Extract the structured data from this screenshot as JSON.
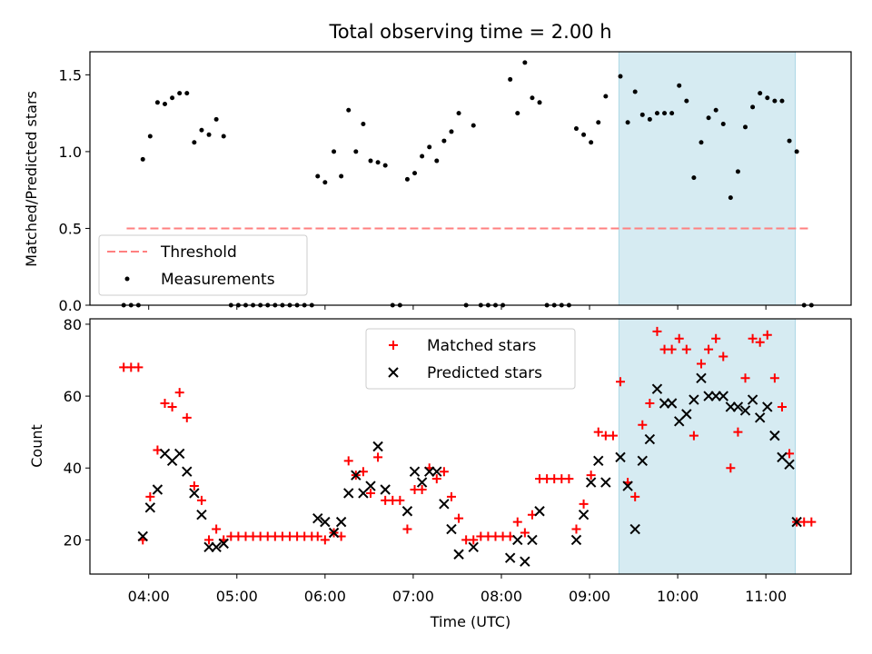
{
  "chart_data": [
    {
      "type": "scatter",
      "title": "Total observing time = 2.00 h",
      "xlabel": "",
      "ylabel": "Matched/Predicted stars",
      "ylim": [
        0.0,
        1.65
      ],
      "yticks": [
        "0.0",
        "0.5",
        "1.0",
        "1.5"
      ],
      "xlim": [
        "03:20",
        "11:58"
      ],
      "highlight_span": [
        "09:20",
        "11:20"
      ],
      "highlight_color": "#add8e6",
      "threshold": {
        "name": "Threshold",
        "value": 0.5,
        "x_range": [
          "03:45",
          "11:30"
        ],
        "color": "#ff8080",
        "style": "dashed"
      },
      "legend_placement": "lower-left",
      "series": [
        {
          "name": "Measurements",
          "color": "#000000",
          "points": [
            [
              "03:43",
              0.0
            ],
            [
              "03:48",
              0.0
            ],
            [
              "03:53",
              0.0
            ],
            [
              "03:56",
              0.95
            ],
            [
              "04:01",
              1.1
            ],
            [
              "04:06",
              1.32
            ],
            [
              "04:11",
              1.31
            ],
            [
              "04:16",
              1.35
            ],
            [
              "04:21",
              1.38
            ],
            [
              "04:26",
              1.38
            ],
            [
              "04:31",
              1.06
            ],
            [
              "04:36",
              1.14
            ],
            [
              "04:41",
              1.11
            ],
            [
              "04:46",
              1.21
            ],
            [
              "04:51",
              1.1
            ],
            [
              "04:56",
              0.0
            ],
            [
              "05:01",
              0.0
            ],
            [
              "05:06",
              0.0
            ],
            [
              "05:11",
              0.0
            ],
            [
              "05:16",
              0.0
            ],
            [
              "05:21",
              0.0
            ],
            [
              "05:26",
              0.0
            ],
            [
              "05:31",
              0.0
            ],
            [
              "05:36",
              0.0
            ],
            [
              "05:41",
              0.0
            ],
            [
              "05:46",
              0.0
            ],
            [
              "05:51",
              0.0
            ],
            [
              "05:55",
              0.84
            ],
            [
              "06:00",
              0.8
            ],
            [
              "06:06",
              1.0
            ],
            [
              "06:11",
              0.84
            ],
            [
              "06:16",
              1.27
            ],
            [
              "06:21",
              1.0
            ],
            [
              "06:26",
              1.18
            ],
            [
              "06:31",
              0.94
            ],
            [
              "06:36",
              0.93
            ],
            [
              "06:41",
              0.91
            ],
            [
              "06:46",
              0.0
            ],
            [
              "06:51",
              0.0
            ],
            [
              "06:56",
              0.82
            ],
            [
              "07:01",
              0.86
            ],
            [
              "07:06",
              0.97
            ],
            [
              "07:11",
              1.03
            ],
            [
              "07:16",
              0.94
            ],
            [
              "07:21",
              1.07
            ],
            [
              "07:26",
              1.13
            ],
            [
              "07:31",
              1.25
            ],
            [
              "07:36",
              0.0
            ],
            [
              "07:41",
              1.17
            ],
            [
              "07:46",
              0.0
            ],
            [
              "07:51",
              0.0
            ],
            [
              "07:56",
              0.0
            ],
            [
              "08:01",
              0.0
            ],
            [
              "08:06",
              1.47
            ],
            [
              "08:11",
              1.25
            ],
            [
              "08:16",
              1.58
            ],
            [
              "08:21",
              1.35
            ],
            [
              "08:26",
              1.32
            ],
            [
              "08:31",
              0.0
            ],
            [
              "08:36",
              0.0
            ],
            [
              "08:41",
              0.0
            ],
            [
              "08:46",
              0.0
            ],
            [
              "08:51",
              1.15
            ],
            [
              "08:56",
              1.11
            ],
            [
              "09:01",
              1.06
            ],
            [
              "09:06",
              1.19
            ],
            [
              "09:11",
              1.36
            ],
            [
              "09:21",
              1.49
            ],
            [
              "09:26",
              1.19
            ],
            [
              "09:31",
              1.39
            ],
            [
              "09:36",
              1.24
            ],
            [
              "09:41",
              1.21
            ],
            [
              "09:46",
              1.25
            ],
            [
              "09:51",
              1.25
            ],
            [
              "09:56",
              1.25
            ],
            [
              "10:01",
              1.43
            ],
            [
              "10:06",
              1.33
            ],
            [
              "10:11",
              0.83
            ],
            [
              "10:16",
              1.06
            ],
            [
              "10:21",
              1.22
            ],
            [
              "10:26",
              1.27
            ],
            [
              "10:31",
              1.18
            ],
            [
              "10:36",
              0.7
            ],
            [
              "10:41",
              0.87
            ],
            [
              "10:46",
              1.16
            ],
            [
              "10:51",
              1.29
            ],
            [
              "10:56",
              1.38
            ],
            [
              "11:01",
              1.35
            ],
            [
              "11:06",
              1.33
            ],
            [
              "11:11",
              1.33
            ],
            [
              "11:16",
              1.07
            ],
            [
              "11:21",
              1.0
            ],
            [
              "11:26",
              0.0
            ],
            [
              "11:31",
              0.0
            ]
          ]
        }
      ]
    },
    {
      "type": "scatter",
      "title": "",
      "xlabel": "Time (UTC)",
      "ylabel": "Count",
      "ylim": [
        10.5,
        81.5
      ],
      "yticks": [
        "20",
        "40",
        "60",
        "80"
      ],
      "xlim": [
        "03:20",
        "11:58"
      ],
      "xticks": [
        "04:00",
        "05:00",
        "06:00",
        "07:00",
        "08:00",
        "09:00",
        "10:00",
        "11:00"
      ],
      "highlight_span": [
        "09:20",
        "11:20"
      ],
      "highlight_color": "#add8e6",
      "legend_placement": "upper-center",
      "series": [
        {
          "name": "Matched stars",
          "marker": "+",
          "color": "#ff0000",
          "points": [
            [
              "03:43",
              68
            ],
            [
              "03:48",
              68
            ],
            [
              "03:53",
              68
            ],
            [
              "03:56",
              20
            ],
            [
              "04:01",
              32
            ],
            [
              "04:06",
              45
            ],
            [
              "04:11",
              58
            ],
            [
              "04:16",
              57
            ],
            [
              "04:21",
              61
            ],
            [
              "04:26",
              54
            ],
            [
              "04:31",
              35
            ],
            [
              "04:36",
              31
            ],
            [
              "04:41",
              20
            ],
            [
              "04:46",
              23
            ],
            [
              "04:51",
              20
            ],
            [
              "04:56",
              21
            ],
            [
              "05:01",
              21
            ],
            [
              "05:06",
              21
            ],
            [
              "05:11",
              21
            ],
            [
              "05:16",
              21
            ],
            [
              "05:21",
              21
            ],
            [
              "05:26",
              21
            ],
            [
              "05:31",
              21
            ],
            [
              "05:36",
              21
            ],
            [
              "05:41",
              21
            ],
            [
              "05:46",
              21
            ],
            [
              "05:51",
              21
            ],
            [
              "05:55",
              21
            ],
            [
              "06:00",
              20
            ],
            [
              "06:06",
              22
            ],
            [
              "06:11",
              21
            ],
            [
              "06:16",
              42
            ],
            [
              "06:21",
              38
            ],
            [
              "06:26",
              39
            ],
            [
              "06:31",
              33
            ],
            [
              "06:36",
              43
            ],
            [
              "06:41",
              31
            ],
            [
              "06:46",
              31
            ],
            [
              "06:51",
              31
            ],
            [
              "06:56",
              23
            ],
            [
              "07:01",
              34
            ],
            [
              "07:06",
              34
            ],
            [
              "07:11",
              40
            ],
            [
              "07:16",
              37
            ],
            [
              "07:21",
              39
            ],
            [
              "07:26",
              32
            ],
            [
              "07:31",
              26
            ],
            [
              "07:36",
              20
            ],
            [
              "07:41",
              20
            ],
            [
              "07:46",
              21
            ],
            [
              "07:51",
              21
            ],
            [
              "07:56",
              21
            ],
            [
              "08:01",
              21
            ],
            [
              "08:06",
              21
            ],
            [
              "08:11",
              25
            ],
            [
              "08:16",
              22
            ],
            [
              "08:21",
              27
            ],
            [
              "08:26",
              37
            ],
            [
              "08:31",
              37
            ],
            [
              "08:36",
              37
            ],
            [
              "08:41",
              37
            ],
            [
              "08:46",
              37
            ],
            [
              "08:51",
              23
            ],
            [
              "08:56",
              30
            ],
            [
              "09:01",
              38
            ],
            [
              "09:06",
              50
            ],
            [
              "09:11",
              49
            ],
            [
              "09:16",
              49
            ],
            [
              "09:21",
              64
            ],
            [
              "09:26",
              36
            ],
            [
              "09:31",
              32
            ],
            [
              "09:36",
              52
            ],
            [
              "09:41",
              58
            ],
            [
              "09:46",
              78
            ],
            [
              "09:51",
              73
            ],
            [
              "09:56",
              73
            ],
            [
              "10:01",
              76
            ],
            [
              "10:06",
              73
            ],
            [
              "10:11",
              49
            ],
            [
              "10:16",
              69
            ],
            [
              "10:21",
              73
            ],
            [
              "10:26",
              76
            ],
            [
              "10:31",
              71
            ],
            [
              "10:36",
              40
            ],
            [
              "10:41",
              50
            ],
            [
              "10:46",
              65
            ],
            [
              "10:51",
              76
            ],
            [
              "10:56",
              75
            ],
            [
              "11:01",
              77
            ],
            [
              "11:06",
              65
            ],
            [
              "11:11",
              57
            ],
            [
              "11:16",
              44
            ],
            [
              "11:21",
              25
            ],
            [
              "11:26",
              25
            ],
            [
              "11:31",
              25
            ]
          ]
        },
        {
          "name": "Predicted stars",
          "marker": "x",
          "color": "#000000",
          "points": [
            [
              "03:56",
              21
            ],
            [
              "04:01",
              29
            ],
            [
              "04:06",
              34
            ],
            [
              "04:11",
              44
            ],
            [
              "04:16",
              42
            ],
            [
              "04:21",
              44
            ],
            [
              "04:26",
              39
            ],
            [
              "04:31",
              33
            ],
            [
              "04:36",
              27
            ],
            [
              "04:41",
              18
            ],
            [
              "04:46",
              18
            ],
            [
              "04:51",
              19
            ],
            [
              "05:55",
              26
            ],
            [
              "06:00",
              25
            ],
            [
              "06:06",
              22
            ],
            [
              "06:11",
              25
            ],
            [
              "06:16",
              33
            ],
            [
              "06:21",
              38
            ],
            [
              "06:26",
              33
            ],
            [
              "06:31",
              35
            ],
            [
              "06:36",
              46
            ],
            [
              "06:41",
              34
            ],
            [
              "06:56",
              28
            ],
            [
              "07:01",
              39
            ],
            [
              "07:06",
              36
            ],
            [
              "07:11",
              39
            ],
            [
              "07:16",
              39
            ],
            [
              "07:21",
              30
            ],
            [
              "07:26",
              23
            ],
            [
              "07:31",
              16
            ],
            [
              "07:41",
              18
            ],
            [
              "08:06",
              15
            ],
            [
              "08:11",
              20
            ],
            [
              "08:16",
              14
            ],
            [
              "08:21",
              20
            ],
            [
              "08:26",
              28
            ],
            [
              "08:51",
              20
            ],
            [
              "08:56",
              27
            ],
            [
              "09:01",
              36
            ],
            [
              "09:06",
              42
            ],
            [
              "09:11",
              36
            ],
            [
              "09:21",
              43
            ],
            [
              "09:26",
              35
            ],
            [
              "09:31",
              23
            ],
            [
              "09:36",
              42
            ],
            [
              "09:41",
              48
            ],
            [
              "09:46",
              62
            ],
            [
              "09:51",
              58
            ],
            [
              "09:56",
              58
            ],
            [
              "10:01",
              53
            ],
            [
              "10:06",
              55
            ],
            [
              "10:11",
              59
            ],
            [
              "10:16",
              65
            ],
            [
              "10:21",
              60
            ],
            [
              "10:26",
              60
            ],
            [
              "10:31",
              60
            ],
            [
              "10:36",
              57
            ],
            [
              "10:41",
              57
            ],
            [
              "10:46",
              56
            ],
            [
              "10:51",
              59
            ],
            [
              "10:56",
              54
            ],
            [
              "11:01",
              57
            ],
            [
              "11:06",
              49
            ],
            [
              "11:11",
              43
            ],
            [
              "11:16",
              41
            ],
            [
              "11:21",
              25
            ]
          ]
        }
      ]
    }
  ]
}
